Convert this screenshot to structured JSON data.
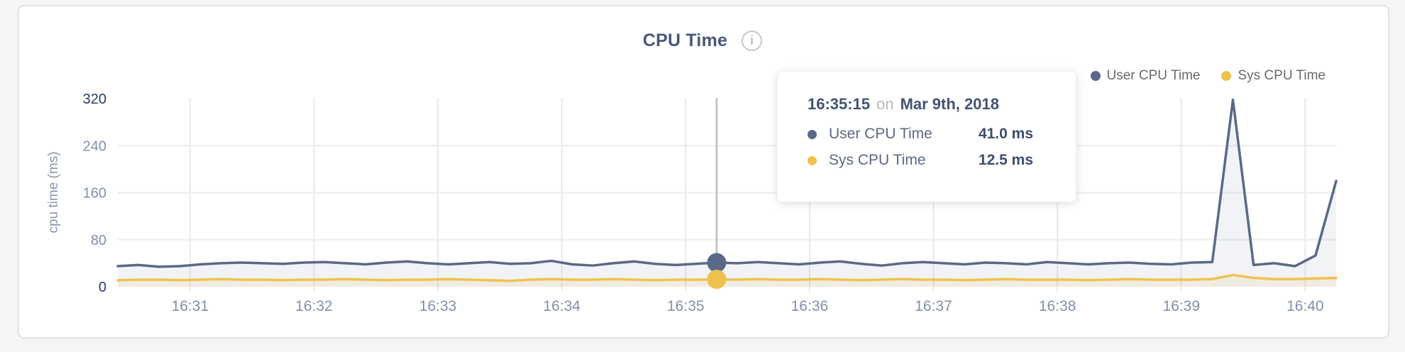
{
  "header": {
    "title": "CPU Time",
    "info_icon": "i"
  },
  "legend": {
    "items": [
      {
        "label": "User CPU Time",
        "color": "#5b6988"
      },
      {
        "label": "Sys CPU Time",
        "color": "#efc24e"
      }
    ]
  },
  "tooltip": {
    "time": "16:35:15",
    "connector": "on",
    "date": "Mar 9th, 2018",
    "rows": [
      {
        "label": "User CPU Time",
        "value": "41.0 ms",
        "color": "#5b6988"
      },
      {
        "label": "Sys CPU Time",
        "value": "12.5 ms",
        "color": "#efc24e"
      }
    ]
  },
  "chart_data": {
    "type": "area",
    "title": "CPU Time",
    "xlabel": "",
    "ylabel": "cpu time (ms)",
    "ylim": [
      0,
      320
    ],
    "grid": true,
    "legend_position": "top-right",
    "y_ticks": [
      {
        "label": "0",
        "value": 0,
        "strong": true
      },
      {
        "label": "80",
        "value": 80,
        "strong": false
      },
      {
        "label": "160",
        "value": 160,
        "strong": false
      },
      {
        "label": "240",
        "value": 240,
        "strong": false
      },
      {
        "label": "320",
        "value": 320,
        "strong": true
      }
    ],
    "x_ticks": [
      {
        "label": "16:31",
        "time": "16:31:00"
      },
      {
        "label": "16:32",
        "time": "16:32:00"
      },
      {
        "label": "16:33",
        "time": "16:33:00"
      },
      {
        "label": "16:34",
        "time": "16:34:00"
      },
      {
        "label": "16:35",
        "time": "16:35:00"
      },
      {
        "label": "16:36",
        "time": "16:36:00"
      },
      {
        "label": "16:37",
        "time": "16:37:00"
      },
      {
        "label": "16:38",
        "time": "16:38:00"
      },
      {
        "label": "16:39",
        "time": "16:39:00"
      },
      {
        "label": "16:40",
        "time": "16:40:00"
      }
    ],
    "x_range": [
      "16:30:25",
      "16:40:15"
    ],
    "sample_interval_seconds": 10,
    "series": [
      {
        "name": "User CPU Time",
        "unit": "ms",
        "color": "#5b6988",
        "fill": "rgba(91,105,136,0.08)",
        "values": [
          35,
          37,
          34,
          35,
          38,
          40,
          41,
          40,
          39,
          41,
          42,
          40,
          38,
          41,
          43,
          40,
          38,
          40,
          42,
          39,
          40,
          44,
          38,
          36,
          40,
          43,
          39,
          37,
          39,
          41,
          40,
          42,
          40,
          38,
          41,
          43,
          39,
          36,
          40,
          42,
          40,
          38,
          41,
          40,
          38,
          42,
          40,
          38,
          40,
          41,
          39,
          38,
          41,
          42,
          318,
          37,
          40,
          35,
          53,
          180
        ]
      },
      {
        "name": "Sys CPU Time",
        "unit": "ms",
        "color": "#efc24e",
        "fill": "rgba(238,196,82,0.13)",
        "values": [
          11,
          12,
          12,
          11,
          12,
          13,
          12,
          12,
          11,
          12,
          12,
          13,
          12,
          11,
          12,
          12,
          13,
          12,
          11,
          10,
          12,
          13,
          12,
          12,
          13,
          12,
          11,
          12,
          12,
          12.5,
          12,
          13,
          12,
          12,
          13,
          12,
          11,
          12,
          13,
          12,
          12,
          11,
          12,
          13,
          12,
          12,
          12,
          11,
          12,
          13,
          12,
          12,
          12,
          13,
          20,
          15,
          13,
          13,
          14,
          15
        ]
      }
    ],
    "hover": {
      "time": "16:35:15",
      "user_value_ms": 41.0,
      "sys_value_ms": 12.5
    }
  }
}
